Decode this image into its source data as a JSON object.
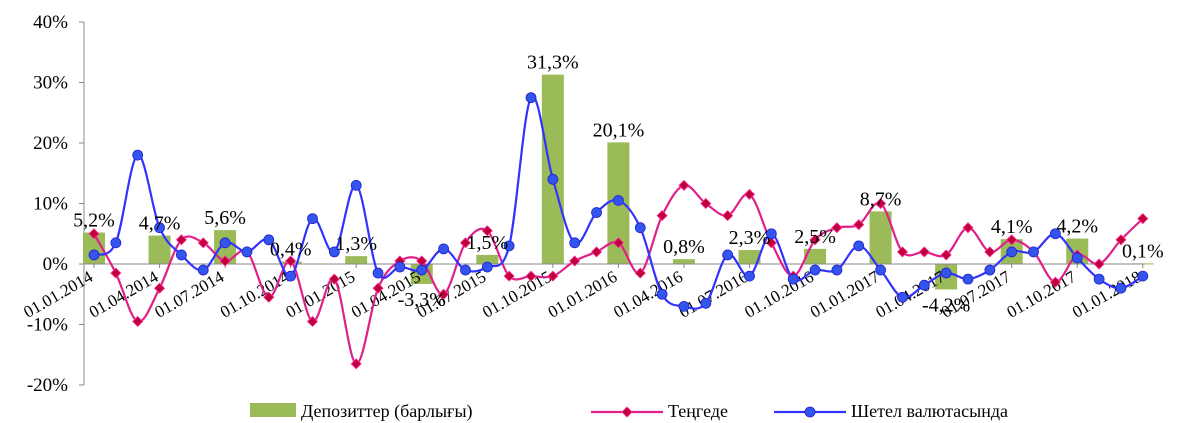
{
  "chart_data": {
    "type": "bar",
    "ylim": [
      -20,
      40
    ],
    "y_ticks": [
      "-20%",
      "-10%",
      "0%",
      "10%",
      "20%",
      "30%",
      "40%"
    ],
    "y_tick_values": [
      -20,
      -10,
      0,
      10,
      20,
      30,
      40
    ],
    "x_tick_labels": [
      "01.01.2014",
      "01.04.2014",
      "01.07.2014",
      "01.10.2014",
      "01.01.2015",
      "01.04.2015",
      "01.07.2015",
      "01.10.2015",
      "01.01.2016",
      "01.04.2016",
      "01.07.2016",
      "01.10.2016",
      "01.01.2017",
      "01.04.2017",
      "01.07.2017",
      "01.10.2017",
      "01.01.2018"
    ],
    "x_tick_index": [
      0,
      3,
      6,
      9,
      12,
      15,
      18,
      21,
      24,
      27,
      30,
      33,
      36,
      39,
      42,
      45,
      48
    ],
    "n_points": 49,
    "grid": false,
    "legend_position": "bottom",
    "series": [
      {
        "name": "Депозиттер (барлығы)",
        "kind": "bar",
        "color": "#9bbb59",
        "x_index": [
          0,
          3,
          6,
          9,
          12,
          15,
          18,
          21,
          24,
          27,
          30,
          33,
          36,
          39,
          42,
          45,
          48
        ],
        "values": [
          5.2,
          4.7,
          5.6,
          0.4,
          1.3,
          -3.3,
          1.5,
          31.3,
          20.1,
          0.8,
          2.3,
          2.5,
          8.7,
          -4.2,
          4.1,
          4.2,
          0.1
        ],
        "labels": [
          "5,2%",
          "4,7%",
          "5,6%",
          "0,4%",
          "1,3%",
          "-3,3%",
          "1,5%",
          "31,3%",
          "20,1%",
          "0,8%",
          "2,3%",
          "2,5%",
          "8,7%",
          "-4,2%",
          "4,1%",
          "4,2%",
          "0,1%"
        ]
      },
      {
        "name": "Теңгеде",
        "kind": "line",
        "color": "#e0208a",
        "marker_color": "#c0003c",
        "values": [
          5.0,
          -1.5,
          -9.5,
          -4.0,
          4.0,
          3.5,
          0.5,
          2.0,
          -5.5,
          0.5,
          -9.5,
          -2.5,
          -16.5,
          -4.0,
          0.5,
          0.5,
          -5.0,
          3.5,
          5.5,
          -2.0,
          -2.0,
          -2.0,
          0.5,
          2.0,
          3.5,
          -1.5,
          8.0,
          13.0,
          10.0,
          8.0,
          11.5,
          3.5,
          -2.0,
          4.0,
          6.0,
          6.5,
          10.0,
          2.0,
          2.0,
          1.5,
          6.0,
          2.0,
          4.0,
          2.0,
          -3.0,
          1.5,
          0.0,
          4.0,
          7.5
        ]
      },
      {
        "name": "Шетел валютасында",
        "kind": "line",
        "color": "#3333ff",
        "marker_color": "#3355ee",
        "values": [
          1.5,
          3.5,
          18.0,
          6.0,
          1.5,
          -1.0,
          3.5,
          2.0,
          4.0,
          -2.0,
          7.5,
          2.0,
          13.0,
          -1.5,
          -0.5,
          -1.0,
          2.5,
          -1.0,
          -0.5,
          3.0,
          27.5,
          14.0,
          3.5,
          8.5,
          10.5,
          6.0,
          -5.0,
          -7.0,
          -6.5,
          1.5,
          -2.0,
          5.0,
          -2.5,
          -1.0,
          -1.0,
          3.0,
          -1.0,
          -5.5,
          -3.5,
          -1.5,
          -2.5,
          -1.0,
          2.0,
          2.0,
          5.0,
          1.0,
          -2.5,
          -4.0,
          -2.0
        ]
      }
    ]
  }
}
